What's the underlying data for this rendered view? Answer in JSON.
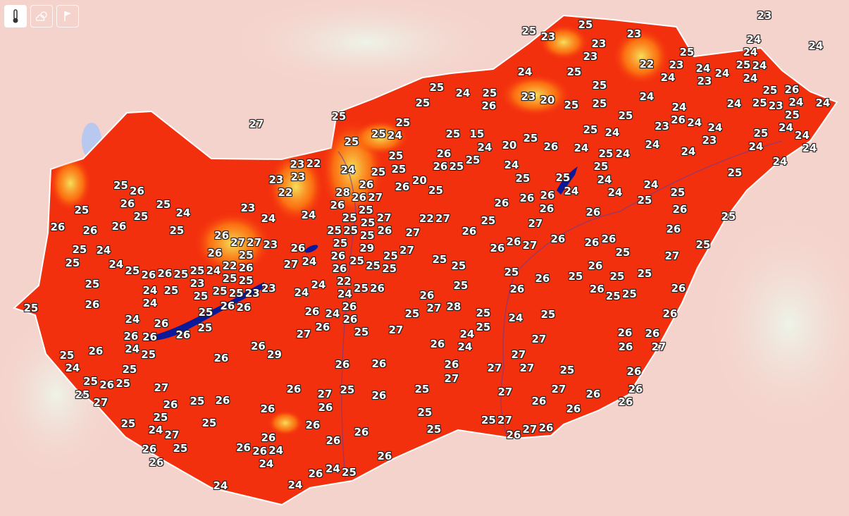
{
  "toolbar": {
    "buttons": [
      {
        "icon": "thermometer-icon",
        "active": true
      },
      {
        "icon": "cloud-sun-icon",
        "active": false
      },
      {
        "icon": "flag-icon",
        "active": false
      }
    ]
  },
  "colors": {
    "hot": "#f3300e",
    "warm": "#ff7a10",
    "cool": "#f5e05a",
    "water": "#0a1a9a",
    "background": "#f4d3cc"
  },
  "temperature_labels": [
    "23",
    "24",
    "25",
    "23",
    "25",
    "23",
    "27",
    "23",
    "23",
    "25",
    "22",
    "23",
    "24",
    "24",
    "23",
    "24",
    "24",
    "24",
    "25",
    "24",
    "24",
    "24",
    "25",
    "25",
    "24",
    "25",
    "26",
    "25",
    "23",
    "24",
    "25",
    "24",
    "24",
    "24",
    "26",
    "24",
    "23",
    "24",
    "23",
    "25",
    "24",
    "24",
    "24",
    "24",
    "24",
    "25",
    "25",
    "25",
    "25",
    "24",
    "25",
    "26",
    "23",
    "20",
    "25",
    "25",
    "25",
    "24",
    "24",
    "25",
    "24",
    "24",
    "25",
    "24",
    "26",
    "25",
    "20",
    "15",
    "24",
    "25",
    "25",
    "25",
    "25",
    "25",
    "24",
    "25",
    "25",
    "25",
    "26",
    "26",
    "25",
    "25",
    "24",
    "25",
    "25",
    "24",
    "25",
    "24",
    "24",
    "24",
    "25",
    "25",
    "26",
    "26",
    "27",
    "25",
    "25",
    "25",
    "26",
    "26",
    "26",
    "26",
    "25",
    "25",
    "26",
    "26",
    "26",
    "26",
    "26",
    "27",
    "26",
    "26",
    "26",
    "26",
    "26",
    "27",
    "26",
    "27",
    "25",
    "27",
    "26",
    "27",
    "26",
    "25",
    "27",
    "27",
    "27",
    "27",
    "26",
    "27",
    "25",
    "25",
    "25",
    "26",
    "26",
    "25",
    "26",
    "27",
    "26",
    "26",
    "26",
    "26",
    "26",
    "25",
    "24",
    "26",
    "24",
    "24",
    "24",
    "26",
    "24",
    "26",
    "26",
    "25",
    "25",
    "27",
    "25",
    "24",
    "25",
    "26",
    "26",
    "27",
    "25",
    "25",
    "26",
    "25",
    "27",
    "26",
    "25",
    "26",
    "26",
    "26",
    "26",
    "29",
    "26",
    "26",
    "25",
    "27",
    "26",
    "25",
    "27",
    "25",
    "26",
    "24",
    "24",
    "25",
    "25",
    "24",
    "25",
    "26",
    "25",
    "26",
    "25",
    "26",
    "26",
    "27",
    "26",
    "27",
    "26",
    "26",
    "26",
    "26",
    "26",
    "25",
    "26",
    "27",
    "22",
    "25",
    "20",
    "26",
    "25",
    "25",
    "25",
    "26",
    "27",
    "28",
    "25",
    "24",
    "28",
    "26",
    "26",
    "27",
    "25",
    "27",
    "26",
    "25",
    "26",
    "25",
    "25",
    "25",
    "29",
    "25",
    "25",
    "26",
    "25",
    "25",
    "25",
    "25",
    "27",
    "27",
    "26",
    "22",
    "24",
    "24",
    "26",
    "24",
    "26",
    "24",
    "25",
    "26",
    "26",
    "23",
    "22",
    "23",
    "23",
    "22",
    "24",
    "23",
    "24",
    "23",
    "26",
    "24",
    "27",
    "26",
    "27",
    "27",
    "26",
    "25",
    "24",
    "22",
    "25",
    "26",
    "25",
    "25",
    "25",
    "25",
    "23",
    "23",
    "26",
    "26",
    "25",
    "23",
    "25",
    "25",
    "25",
    "26",
    "26",
    "25",
    "24",
    "24",
    "24",
    "26",
    "26",
    "26",
    "24",
    "25",
    "25",
    "26",
    "25",
    "24",
    "25",
    "26",
    "25",
    "24",
    "24",
    "25",
    "25",
    "26",
    "26",
    "26",
    "25",
    "25",
    "25",
    "24",
    "25",
    "26",
    "26",
    "25"
  ]
}
